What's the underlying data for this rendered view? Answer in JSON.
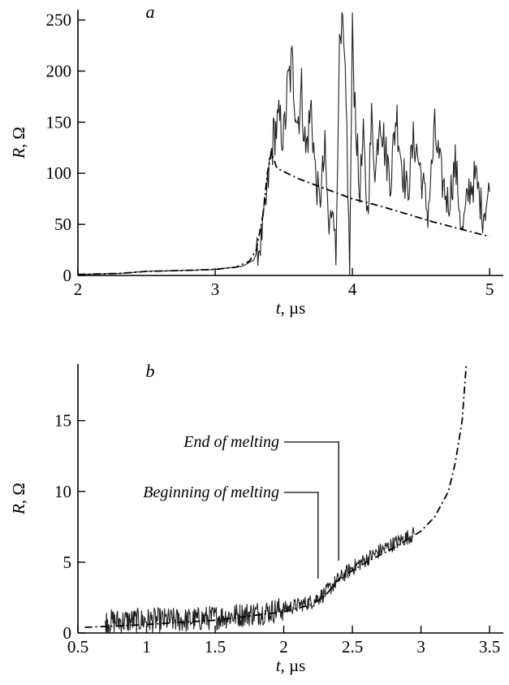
{
  "chart_data": [
    {
      "panel": "a",
      "type": "line",
      "xlabel_var": "t",
      "xlabel_unit": ", µs",
      "ylabel_var": "R",
      "ylabel_unit": ", Ω",
      "xlim": [
        2,
        5.1
      ],
      "ylim": [
        0,
        260
      ],
      "xticks": [
        2,
        3,
        4,
        5
      ],
      "yticks": [
        0,
        50,
        100,
        150,
        200,
        250
      ],
      "measured_anchors": [
        [
          2.0,
          1
        ],
        [
          2.3,
          2
        ],
        [
          2.5,
          4
        ],
        [
          2.8,
          5
        ],
        [
          3.0,
          6
        ],
        [
          3.2,
          9
        ],
        [
          3.28,
          15
        ],
        [
          3.33,
          30
        ],
        [
          3.37,
          70
        ],
        [
          3.4,
          110
        ],
        [
          3.43,
          140
        ],
        [
          3.47,
          150
        ],
        [
          3.5,
          135
        ],
        [
          3.53,
          185
        ],
        [
          3.56,
          205
        ],
        [
          3.6,
          150
        ],
        [
          3.63,
          180
        ],
        [
          3.66,
          120
        ],
        [
          3.7,
          165
        ],
        [
          3.73,
          100
        ],
        [
          3.76,
          70
        ],
        [
          3.8,
          120
        ],
        [
          3.83,
          40
        ],
        [
          3.86,
          80
        ],
        [
          3.88,
          10
        ],
        [
          3.9,
          200
        ],
        [
          3.93,
          235
        ],
        [
          3.96,
          140
        ],
        [
          3.98,
          0
        ],
        [
          4.0,
          235
        ],
        [
          4.02,
          170
        ],
        [
          4.05,
          80
        ],
        [
          4.08,
          130
        ],
        [
          4.11,
          60
        ],
        [
          4.14,
          150
        ],
        [
          4.17,
          100
        ],
        [
          4.2,
          165
        ],
        [
          4.24,
          120
        ],
        [
          4.28,
          95
        ],
        [
          4.32,
          160
        ],
        [
          4.36,
          110
        ],
        [
          4.4,
          80
        ],
        [
          4.45,
          135
        ],
        [
          4.5,
          100
        ],
        [
          4.55,
          60
        ],
        [
          4.6,
          140
        ],
        [
          4.65,
          95
        ],
        [
          4.7,
          70
        ],
        [
          4.75,
          110
        ],
        [
          4.8,
          40
        ],
        [
          4.85,
          85
        ],
        [
          4.9,
          95
        ],
        [
          4.95,
          60
        ],
        [
          5.0,
          82
        ]
      ],
      "model_curve": [
        [
          2.0,
          1
        ],
        [
          2.3,
          2
        ],
        [
          2.5,
          4
        ],
        [
          2.8,
          5
        ],
        [
          3.0,
          6
        ],
        [
          3.15,
          8
        ],
        [
          3.25,
          14
        ],
        [
          3.3,
          25
        ],
        [
          3.35,
          60
        ],
        [
          3.38,
          100
        ],
        [
          3.41,
          120
        ],
        [
          3.45,
          105
        ],
        [
          3.6,
          95
        ],
        [
          3.8,
          85
        ],
        [
          4.0,
          75
        ],
        [
          4.2,
          68
        ],
        [
          4.4,
          60
        ],
        [
          4.6,
          52
        ],
        [
          4.8,
          45
        ],
        [
          5.0,
          38
        ]
      ]
    },
    {
      "panel": "b",
      "type": "line",
      "xlabel_var": "t",
      "xlabel_unit": ", µs",
      "ylabel_var": "R",
      "ylabel_unit": ", Ω",
      "xlim": [
        0.5,
        3.6
      ],
      "ylim": [
        0,
        19
      ],
      "xticks": [
        0.5,
        1,
        1.5,
        2,
        2.5,
        3,
        3.5
      ],
      "yticks": [
        0,
        5,
        10,
        15
      ],
      "measured_anchors": [
        [
          0.7,
          0.8
        ],
        [
          1.0,
          0.9
        ],
        [
          1.3,
          0.9
        ],
        [
          1.5,
          1.1
        ],
        [
          1.8,
          1.4
        ],
        [
          2.0,
          1.7
        ],
        [
          2.2,
          2.2
        ],
        [
          2.3,
          2.8
        ],
        [
          2.4,
          3.8
        ],
        [
          2.5,
          4.6
        ],
        [
          2.6,
          5.2
        ],
        [
          2.7,
          5.8
        ],
        [
          2.8,
          6.3
        ],
        [
          2.95,
          7.0
        ]
      ],
      "model_curve": [
        [
          0.55,
          0.4
        ],
        [
          0.8,
          0.5
        ],
        [
          1.0,
          0.6
        ],
        [
          1.5,
          0.9
        ],
        [
          2.0,
          1.5
        ],
        [
          2.2,
          2.0
        ],
        [
          2.3,
          2.6
        ],
        [
          2.4,
          3.8
        ],
        [
          2.6,
          5.0
        ],
        [
          2.8,
          6.0
        ],
        [
          3.0,
          7.2
        ],
        [
          3.1,
          8.2
        ],
        [
          3.2,
          10.0
        ],
        [
          3.25,
          12.0
        ],
        [
          3.3,
          15.0
        ],
        [
          3.33,
          19.0
        ]
      ],
      "annotations": [
        {
          "text": "End of melting",
          "x": 2.4
        },
        {
          "text": "Beginning of melting",
          "x": 2.25
        }
      ]
    }
  ]
}
